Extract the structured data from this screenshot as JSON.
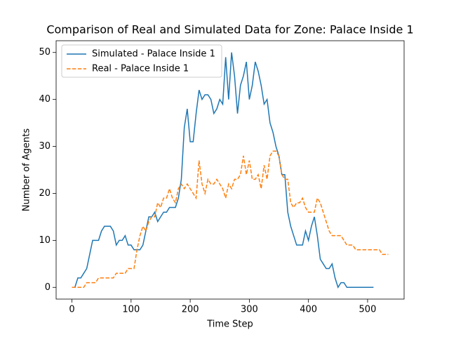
{
  "chart_data": {
    "type": "line",
    "title": "Comparison of Real and Simulated Data for Zone: Palace Inside 1",
    "x_label": "Time Step",
    "y_label": "Number of Agents",
    "xlim": [
      -26.75,
      561.75
    ],
    "ylim": [
      -2.5,
      52.5
    ],
    "xticks": [
      0,
      100,
      200,
      300,
      400,
      500
    ],
    "yticks": [
      0,
      10,
      20,
      30,
      40,
      50
    ],
    "legend": "upper left",
    "grid": false,
    "series": [
      {
        "name": "Simulated - Palace Inside 1",
        "color": "#1f77b4",
        "dash": "solid",
        "x": [
          0,
          5,
          10,
          15,
          20,
          25,
          30,
          35,
          40,
          45,
          50,
          55,
          60,
          65,
          70,
          75,
          80,
          85,
          90,
          95,
          100,
          105,
          110,
          115,
          120,
          125,
          130,
          135,
          140,
          145,
          150,
          155,
          160,
          165,
          170,
          175,
          180,
          185,
          190,
          195,
          200,
          205,
          210,
          215,
          220,
          225,
          230,
          235,
          240,
          245,
          250,
          255,
          260,
          265,
          270,
          275,
          280,
          285,
          290,
          295,
          300,
          305,
          310,
          315,
          320,
          325,
          330,
          335,
          340,
          345,
          350,
          355,
          360,
          365,
          370,
          375,
          380,
          385,
          390,
          395,
          400,
          405,
          410,
          415,
          420,
          425,
          430,
          435,
          440,
          445,
          450,
          455,
          460,
          465,
          470,
          475,
          480,
          485,
          490,
          495,
          500,
          505,
          510
        ],
        "values": [
          0,
          0,
          2,
          2,
          3,
          4,
          7,
          10,
          10,
          10,
          12,
          13,
          13,
          13,
          12,
          9,
          10,
          10,
          11,
          9,
          9,
          8,
          8,
          8,
          9,
          12,
          15,
          15,
          16,
          14,
          15,
          16,
          16,
          17,
          17,
          17,
          19,
          23,
          34,
          38,
          31,
          31,
          37,
          42,
          40,
          41,
          41,
          40,
          37,
          38,
          40,
          39,
          49,
          40,
          50,
          45,
          37,
          43,
          45,
          48,
          40,
          43,
          48,
          46,
          43,
          39,
          40,
          35,
          33,
          30,
          28,
          24,
          24,
          16,
          13,
          11,
          9,
          9,
          9,
          12,
          10,
          13,
          15,
          11,
          6,
          5,
          4,
          4,
          5,
          2,
          0,
          1,
          1,
          0,
          0,
          0,
          0,
          0,
          0,
          0,
          0,
          0,
          0
        ]
      },
      {
        "name": "Real - Palace Inside 1",
        "color": "#ff7f0e",
        "dash": "dashed",
        "x": [
          0,
          5,
          10,
          15,
          20,
          25,
          30,
          35,
          40,
          45,
          50,
          55,
          60,
          65,
          70,
          75,
          80,
          85,
          90,
          95,
          100,
          105,
          110,
          115,
          120,
          125,
          130,
          135,
          140,
          145,
          150,
          155,
          160,
          165,
          170,
          175,
          180,
          185,
          190,
          195,
          200,
          205,
          210,
          215,
          220,
          225,
          230,
          235,
          240,
          245,
          250,
          255,
          260,
          265,
          270,
          275,
          280,
          285,
          290,
          295,
          300,
          305,
          310,
          315,
          320,
          325,
          330,
          335,
          340,
          345,
          350,
          355,
          360,
          365,
          370,
          375,
          380,
          385,
          390,
          395,
          400,
          405,
          410,
          415,
          420,
          425,
          430,
          435,
          440,
          445,
          450,
          455,
          460,
          465,
          470,
          475,
          480,
          485,
          490,
          495,
          500,
          505,
          510,
          515,
          520,
          525,
          530,
          535
        ],
        "values": [
          0,
          0,
          0,
          0,
          0,
          1,
          1,
          1,
          1,
          2,
          2,
          2,
          2,
          2,
          2,
          3,
          3,
          3,
          3,
          4,
          4,
          4,
          8,
          11,
          13,
          12,
          14,
          15,
          15,
          18,
          17,
          19,
          19,
          21,
          19,
          18,
          21,
          22,
          21,
          22,
          21,
          20,
          19,
          27,
          22,
          20,
          23,
          22,
          22,
          23,
          22,
          21,
          19,
          22,
          21,
          23,
          23,
          24,
          28,
          24,
          27,
          23,
          23,
          24,
          21,
          26,
          23,
          28,
          29,
          29,
          28,
          24,
          23,
          23,
          18,
          17,
          18,
          18,
          19,
          17,
          16,
          16,
          16,
          19,
          18,
          16,
          14,
          12,
          11,
          11,
          11,
          11,
          10,
          9,
          9,
          9,
          8,
          8,
          8,
          8,
          8,
          8,
          8,
          8,
          8,
          7,
          7,
          7
        ]
      }
    ]
  }
}
